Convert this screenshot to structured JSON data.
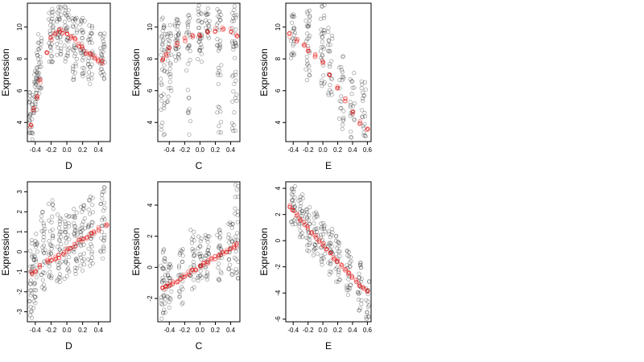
{
  "chart_data": [
    {
      "type": "scatter",
      "panel": "top-left",
      "xlabel": "D",
      "ylabel": "Expression",
      "xlim": [
        -0.5,
        0.55
      ],
      "ylim": [
        2.8,
        11.5
      ],
      "xticks": [
        -0.4,
        -0.2,
        0.0,
        0.2,
        0.4
      ],
      "yticks": [
        4,
        6,
        8,
        10
      ],
      "series": [
        {
          "role": "observed",
          "color": "#000000",
          "clusters": [
            {
              "x": -0.46,
              "y": [
                3.2,
                4.0,
                4.6,
                5.1,
                5.7
              ]
            },
            {
              "x": -0.4,
              "y": [
                4.8,
                5.5,
                6.2,
                6.8,
                7.2
              ]
            },
            {
              "x": -0.35,
              "y": [
                6.0,
                7.0,
                7.8,
                8.5,
                9.2
              ]
            },
            {
              "x": -0.2,
              "y": [
                8.0,
                8.8,
                9.5,
                10.2,
                10.8
              ]
            },
            {
              "x": -0.1,
              "y": [
                8.5,
                9.2,
                9.8,
                10.5,
                11.0
              ]
            },
            {
              "x": 0.0,
              "y": [
                8.2,
                9.0,
                9.6,
                10.4,
                11.1
              ]
            },
            {
              "x": 0.1,
              "y": [
                7.0,
                8.0,
                9.0,
                9.8,
                10.5
              ]
            },
            {
              "x": 0.2,
              "y": [
                7.2,
                8.0,
                8.8,
                9.5,
                10.2
              ]
            },
            {
              "x": 0.3,
              "y": [
                6.8,
                7.6,
                8.4,
                9.2,
                9.8
              ]
            },
            {
              "x": 0.45,
              "y": [
                7.0,
                7.5,
                8.2,
                8.8,
                9.2
              ]
            }
          ]
        },
        {
          "role": "fitted",
          "color": "#e60000",
          "x": [
            -0.46,
            -0.42,
            -0.38,
            -0.34,
            -0.25,
            -0.2,
            -0.15,
            -0.1,
            -0.05,
            0.0,
            0.05,
            0.1,
            0.15,
            0.2,
            0.25,
            0.3,
            0.35,
            0.4,
            0.45
          ],
          "y": [
            3.8,
            4.8,
            5.6,
            6.6,
            8.4,
            9.3,
            9.6,
            9.8,
            9.7,
            9.6,
            9.4,
            9.2,
            8.9,
            8.7,
            8.4,
            8.3,
            8.1,
            7.9,
            7.8
          ]
        }
      ]
    },
    {
      "type": "scatter",
      "panel": "top-middle",
      "xlabel": "C",
      "ylabel": "Expression",
      "xlim": [
        -0.55,
        0.52
      ],
      "ylim": [
        2.8,
        11.5
      ],
      "xticks": [
        -0.4,
        -0.2,
        0.0,
        0.2,
        0.4
      ],
      "yticks": [
        4,
        6,
        8,
        10
      ],
      "series": [
        {
          "role": "observed",
          "color": "#000000",
          "clusters": [
            {
              "x": -0.48,
              "y": [
                3.0,
                4.8,
                6.5,
                7.8,
                8.6,
                9.4,
                10.2
              ]
            },
            {
              "x": -0.4,
              "y": [
                5.5,
                7.0,
                8.2,
                9.0,
                9.8
              ]
            },
            {
              "x": -0.3,
              "y": [
                8.0,
                8.6,
                9.2,
                9.8,
                10.4
              ]
            },
            {
              "x": -0.15,
              "y": [
                3.5,
                7.5,
                8.8,
                9.6,
                10.5
              ]
            },
            {
              "x": 0.0,
              "y": [
                8.2,
                9.0,
                9.6,
                10.2,
                11.0
              ]
            },
            {
              "x": 0.1,
              "y": [
                9.5,
                10.2,
                10.8
              ]
            },
            {
              "x": 0.25,
              "y": [
                3.5,
                6.0,
                8.4,
                9.2,
                10.0,
                11.0
              ]
            },
            {
              "x": 0.45,
              "y": [
                3.2,
                5.0,
                7.2,
                8.5,
                9.4,
                10.2,
                11.2
              ]
            }
          ]
        },
        {
          "role": "fitted",
          "color": "#e60000",
          "x": [
            -0.48,
            -0.44,
            -0.4,
            -0.3,
            -0.2,
            -0.1,
            0.0,
            0.1,
            0.2,
            0.3,
            0.4,
            0.48
          ],
          "y": [
            8.0,
            8.3,
            8.6,
            8.9,
            9.2,
            9.4,
            9.5,
            9.7,
            9.8,
            9.9,
            9.8,
            9.5
          ]
        }
      ]
    },
    {
      "type": "scatter",
      "panel": "top-right",
      "xlabel": "E",
      "ylabel": "Expression",
      "xlim": [
        -0.5,
        0.65
      ],
      "ylim": [
        2.8,
        11.5
      ],
      "xticks": [
        -0.4,
        -0.2,
        0.0,
        0.2,
        0.4,
        0.6
      ],
      "yticks": [
        4,
        6,
        8,
        10
      ],
      "series": [
        {
          "role": "observed",
          "color": "#000000",
          "clusters": [
            {
              "x": -0.4,
              "y": [
                8.0,
                9.0,
                9.8,
                10.4
              ]
            },
            {
              "x": -0.2,
              "y": [
                7.0,
                8.2,
                9.2,
                10.0,
                10.8
              ]
            },
            {
              "x": 0.0,
              "y": [
                6.5,
                8.0,
                9.0,
                9.8,
                11.0
              ]
            },
            {
              "x": 0.1,
              "y": [
                6.0,
                7.2,
                8.4,
                9.6
              ]
            },
            {
              "x": 0.25,
              "y": [
                3.8,
                5.2,
                6.4,
                7.8
              ]
            },
            {
              "x": 0.4,
              "y": [
                3.0,
                4.2,
                5.5,
                6.8
              ]
            },
            {
              "x": 0.55,
              "y": [
                3.0,
                3.8,
                5.0,
                6.5
              ]
            }
          ]
        },
        {
          "role": "fitted",
          "color": "#e60000",
          "x": [
            -0.45,
            -0.35,
            -0.25,
            -0.2,
            -0.1,
            0.0,
            0.1,
            0.2,
            0.3,
            0.4,
            0.5,
            0.6
          ],
          "y": [
            9.5,
            9.2,
            8.8,
            8.6,
            8.2,
            7.8,
            7.0,
            6.2,
            5.4,
            4.6,
            4.0,
            3.5
          ]
        }
      ]
    },
    {
      "type": "scatter",
      "panel": "bottom-left",
      "xlabel": "D",
      "ylabel": "Expression",
      "xlim": [
        -0.5,
        0.55
      ],
      "ylim": [
        -3.5,
        3.5
      ],
      "xticks": [
        -0.4,
        -0.2,
        0.0,
        0.2,
        0.4
      ],
      "yticks": [
        -3,
        -2,
        -1,
        0,
        1,
        2,
        3
      ],
      "series": [
        {
          "role": "observed",
          "color": "#000000",
          "clusters": [
            {
              "x": -0.46,
              "y": [
                -3.0,
                -2.2,
                -1.4,
                -0.6,
                0.2
              ]
            },
            {
              "x": -0.4,
              "y": [
                -2.5,
                -1.5,
                -0.8,
                0.0,
                0.6
              ]
            },
            {
              "x": -0.3,
              "y": [
                -1.5,
                -0.8,
                0.0,
                0.8,
                1.8
              ]
            },
            {
              "x": -0.2,
              "y": [
                -1.0,
                -0.3,
                0.4,
                1.0,
                2.2
              ]
            },
            {
              "x": -0.1,
              "y": [
                -1.2,
                -0.5,
                0.2,
                0.8,
                1.5
              ]
            },
            {
              "x": 0.0,
              "y": [
                -1.0,
                -0.2,
                0.5,
                1.1,
                1.6
              ]
            },
            {
              "x": 0.1,
              "y": [
                -0.8,
                0.0,
                0.6,
                1.3,
                1.8
              ]
            },
            {
              "x": 0.2,
              "y": [
                -0.6,
                0.2,
                0.8,
                1.4,
                2.0
              ]
            },
            {
              "x": 0.3,
              "y": [
                -0.5,
                0.4,
                1.0,
                1.6,
                2.4
              ]
            },
            {
              "x": 0.45,
              "y": [
                0.0,
                0.8,
                1.6,
                2.4,
                3.2
              ]
            }
          ]
        },
        {
          "role": "fitted",
          "color": "#e60000",
          "x": [
            -0.45,
            -0.4,
            -0.35,
            -0.25,
            -0.2,
            -0.15,
            -0.1,
            -0.05,
            0.0,
            0.05,
            0.1,
            0.15,
            0.2,
            0.25,
            0.3,
            0.35,
            0.4,
            0.5
          ],
          "y": [
            -1.1,
            -0.9,
            -0.75,
            -0.5,
            -0.4,
            -0.3,
            -0.2,
            -0.05,
            0.1,
            0.25,
            0.35,
            0.5,
            0.6,
            0.75,
            0.85,
            1.0,
            1.1,
            1.3
          ]
        }
      ]
    },
    {
      "type": "scatter",
      "panel": "bottom-middle",
      "xlabel": "C",
      "ylabel": "Expression",
      "xlim": [
        -0.55,
        0.52
      ],
      "ylim": [
        -3.5,
        5.5
      ],
      "xticks": [
        -0.4,
        -0.2,
        0.0,
        0.2,
        0.4
      ],
      "yticks": [
        -2,
        0,
        2,
        4
      ],
      "series": [
        {
          "role": "observed",
          "color": "#000000",
          "clusters": [
            {
              "x": -0.48,
              "y": [
                -3.2,
                -2.4,
                -1.6,
                -0.8,
                0.0,
                0.8
              ]
            },
            {
              "x": -0.4,
              "y": [
                -2.2,
                -1.4,
                -0.6,
                0.2
              ]
            },
            {
              "x": -0.25,
              "y": [
                -2.0,
                -1.0,
                0.0,
                0.8
              ]
            },
            {
              "x": -0.1,
              "y": [
                -1.0,
                0.0,
                1.0,
                2.0
              ]
            },
            {
              "x": 0.0,
              "y": [
                -0.8,
                0.0,
                0.8,
                1.6
              ]
            },
            {
              "x": 0.1,
              "y": [
                -0.4,
                0.4,
                1.2,
                2.0
              ]
            },
            {
              "x": 0.25,
              "y": [
                -0.5,
                0.5,
                1.4,
                2.2
              ]
            },
            {
              "x": 0.4,
              "y": [
                -0.2,
                0.8,
                1.8,
                2.8
              ]
            },
            {
              "x": 0.48,
              "y": [
                -0.8,
                0.6,
                2.0,
                3.5,
                5.0
              ]
            }
          ]
        },
        {
          "role": "fitted",
          "color": "#e60000",
          "x": [
            -0.48,
            -0.44,
            -0.4,
            -0.35,
            -0.3,
            -0.25,
            -0.2,
            -0.15,
            -0.1,
            -0.05,
            0.0,
            0.05,
            0.1,
            0.15,
            0.2,
            0.25,
            0.3,
            0.35,
            0.4,
            0.45,
            0.48
          ],
          "y": [
            -1.4,
            -1.3,
            -1.15,
            -1.0,
            -0.85,
            -0.7,
            -0.55,
            -0.4,
            -0.25,
            -0.1,
            0.05,
            0.2,
            0.35,
            0.5,
            0.6,
            0.75,
            0.9,
            1.05,
            1.2,
            1.35,
            1.45
          ]
        }
      ]
    },
    {
      "type": "scatter",
      "panel": "bottom-right",
      "xlabel": "E",
      "ylabel": "Expression",
      "xlim": [
        -0.5,
        0.65
      ],
      "ylim": [
        -6.2,
        4.5
      ],
      "xticks": [
        -0.4,
        -0.2,
        0.0,
        0.2,
        0.4,
        0.6
      ],
      "yticks": [
        -6,
        -4,
        -2,
        0,
        2,
        4
      ],
      "series": [
        {
          "role": "observed",
          "color": "#000000",
          "clusters": [
            {
              "x": -0.4,
              "y": [
                1.5,
                2.4,
                3.2,
                3.8
              ]
            },
            {
              "x": -0.3,
              "y": [
                0.6,
                1.6,
                2.4,
                3.2
              ]
            },
            {
              "x": -0.2,
              "y": [
                -0.4,
                0.6,
                1.4,
                2.2
              ]
            },
            {
              "x": -0.1,
              "y": [
                -0.8,
                0.0,
                1.0,
                1.8
              ]
            },
            {
              "x": 0.0,
              "y": [
                -1.6,
                -0.6,
                0.4,
                1.4
              ]
            },
            {
              "x": 0.1,
              "y": [
                -2.2,
                -1.2,
                -0.2,
                0.6
              ]
            },
            {
              "x": 0.2,
              "y": [
                -2.8,
                -1.8,
                -0.8,
                0.0
              ]
            },
            {
              "x": 0.35,
              "y": [
                -4.0,
                -3.0,
                -2.0,
                -1.0
              ]
            },
            {
              "x": 0.5,
              "y": [
                -5.0,
                -4.0,
                -3.0,
                -2.0
              ]
            },
            {
              "x": 0.6,
              "y": [
                -5.6,
                -4.6,
                -3.4
              ]
            }
          ]
        },
        {
          "role": "fitted",
          "color": "#e60000",
          "x": [
            -0.45,
            -0.4,
            -0.35,
            -0.3,
            -0.25,
            -0.2,
            -0.15,
            -0.1,
            -0.05,
            0.0,
            0.05,
            0.1,
            0.15,
            0.2,
            0.25,
            0.3,
            0.35,
            0.4,
            0.45,
            0.5,
            0.55,
            0.6
          ],
          "y": [
            2.6,
            2.3,
            2.0,
            1.6,
            1.3,
            1.0,
            0.6,
            0.3,
            0.0,
            -0.3,
            -0.6,
            -1.0,
            -1.3,
            -1.6,
            -1.9,
            -2.2,
            -2.5,
            -2.8,
            -3.1,
            -3.4,
            -3.6,
            -3.8
          ]
        }
      ]
    }
  ]
}
